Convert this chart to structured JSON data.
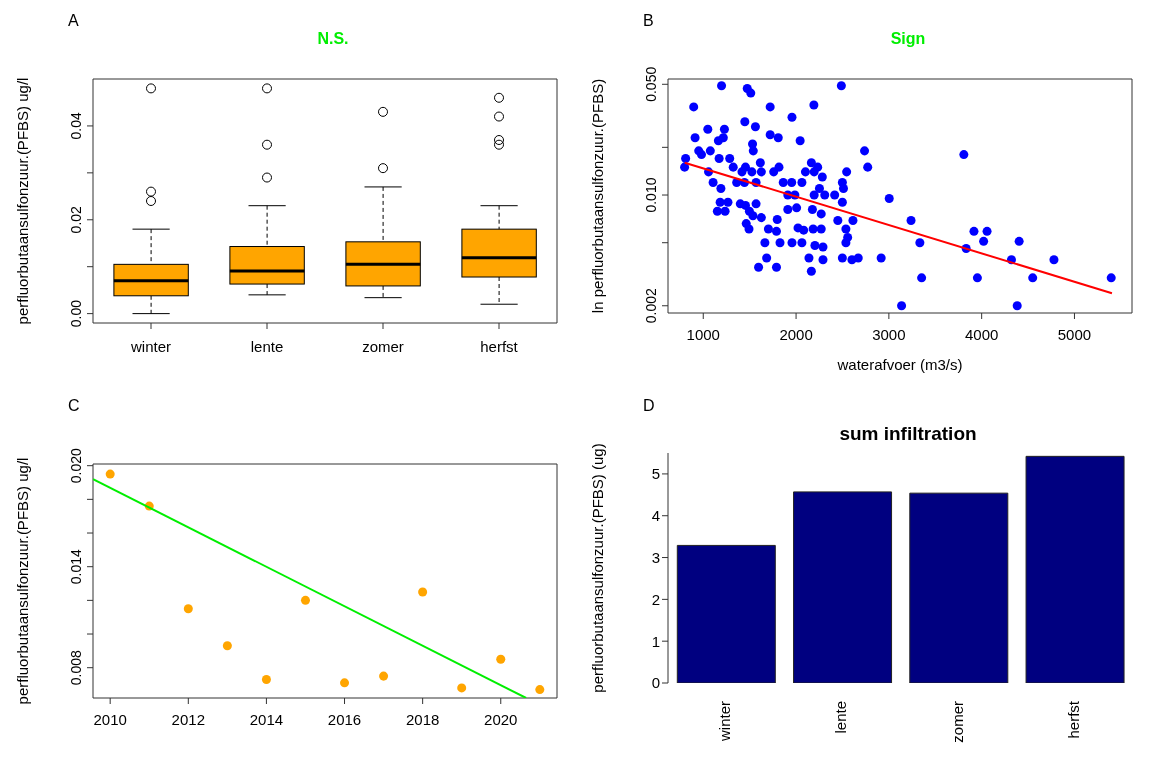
{
  "chart_data": [
    {
      "type": "box",
      "title": "N.S.",
      "ylabel": "perfluorbutaansulfonzuur.(PFBS) ug/l",
      "annotations": [
        "A"
      ],
      "categories": [
        "winter",
        "lente",
        "zomer",
        "herfst"
      ],
      "color": "#ffa500",
      "ylim": [
        -0.002,
        0.05
      ],
      "yticks": [
        {
          "value": 0,
          "label": "0.00"
        },
        {
          "value": 0.01,
          "label": null
        },
        0.02,
        {
          "value": 0.03,
          "label": null
        },
        0.04
      ],
      "boxes": [
        {
          "low": 0,
          "q1": 0.0038,
          "median": 0.007,
          "q3": 0.0105,
          "high": 0.018,
          "outliers": [
            0.048,
            0.026,
            0.024
          ]
        },
        {
          "low": 0.004,
          "q1": 0.0063,
          "median": 0.0091,
          "q3": 0.0143,
          "high": 0.023,
          "outliers": [
            0.048,
            0.036,
            0.029
          ]
        },
        {
          "low": 0.0034,
          "q1": 0.0059,
          "median": 0.0105,
          "q3": 0.0153,
          "high": 0.027,
          "outliers": [
            0.043,
            0.031
          ]
        },
        {
          "low": 0.002,
          "q1": 0.0078,
          "median": 0.0119,
          "q3": 0.018,
          "high": 0.023,
          "outliers": [
            0.046,
            0.042,
            0.037,
            0.036
          ]
        }
      ]
    },
    {
      "type": "scatter",
      "title": "Sign",
      "xlabel": "waterafvoer (m3/s)",
      "ylabel": "ln perfluorbutaansulfonzuur.(PFBS)",
      "annotations": [
        "B"
      ],
      "log": "y",
      "marker": "circle",
      "xlim": [
        620,
        5620
      ],
      "xticks": [
        1000,
        2000,
        3000,
        4000,
        5000
      ],
      "ylim": [
        0.0018,
        0.054
      ],
      "yticks": [
        0.002,
        {
          "value": 0.005,
          "label": null
        },
        {
          "value": 0.01,
          "label": "0.010"
        },
        {
          "value": 0.02,
          "label": null
        },
        {
          "value": 0.05,
          "label": "0.050"
        }
      ],
      "series": [
        {
          "type": "scatter",
          "color": "#0000ff",
          "x": [
            1197,
            1474,
            1512,
            2488,
            897,
            1721,
            2192,
            1956,
            1448,
            1562,
            1049,
            1228,
            912,
            1216,
            1163,
            1721,
            1808,
            2044,
            1531,
            1539,
            2738,
            951,
            981,
            1076,
            1171,
            1285,
            810,
            799,
            2772,
            1323,
            1417,
            1455,
            1524,
            1615,
            1626,
            1759,
            1816,
            1057,
            1106,
            1190,
            1360,
            1444,
            1569,
            2101,
            2165,
            2233,
            2195,
            2283,
            2545,
            2499,
            2511,
            1862,
            1953,
            2063,
            1911,
            1987,
            2195,
            2252,
            2309,
            2416,
            2499,
            3004,
            1182,
            1266,
            1399,
            1455,
            1569,
            1152,
            1235,
            1497,
            1535,
            1626,
            1911,
            2006,
            2176,
            2271,
            1797,
            1463,
            1493,
            1702,
            1789,
            2021,
            2082,
            2184,
            2271,
            2450,
            2537,
            2613,
            3239,
            2556,
            1664,
            1827,
            1956,
            2063,
            2203,
            2290,
            2537,
            3334,
            1683,
            2139,
            2290,
            2499,
            2602,
            2670,
            2917,
            1596,
            1789,
            2165,
            3353,
            3137,
            3808,
            3917,
            4058,
            4021,
            3833,
            3954,
            4404,
            4321,
            4383,
            4550,
            4779,
            5396
          ],
          "values": [
            0.049,
            0.047,
            0.044,
            0.049,
            0.036,
            0.036,
            0.037,
            0.031,
            0.029,
            0.027,
            0.026,
            0.026,
            0.023,
            0.023,
            0.022,
            0.024,
            0.023,
            0.022,
            0.021,
            0.019,
            0.019,
            0.019,
            0.018,
            0.019,
            0.017,
            0.017,
            0.017,
            0.015,
            0.015,
            0.015,
            0.014,
            0.015,
            0.014,
            0.016,
            0.014,
            0.014,
            0.015,
            0.014,
            0.012,
            0.011,
            0.012,
            0.012,
            0.012,
            0.014,
            0.016,
            0.015,
            0.014,
            0.013,
            0.014,
            0.012,
            0.011,
            0.012,
            0.012,
            0.012,
            0.01,
            0.01,
            0.01,
            0.011,
            0.01,
            0.01,
            0.009,
            0.0095,
            0.009,
            0.009,
            0.0088,
            0.0086,
            0.0088,
            0.0079,
            0.0079,
            0.0079,
            0.0074,
            0.0072,
            0.0081,
            0.0083,
            0.0081,
            0.0076,
            0.007,
            0.0066,
            0.0061,
            0.0061,
            0.0059,
            0.0062,
            0.006,
            0.0061,
            0.0061,
            0.0069,
            0.0061,
            0.0069,
            0.0069,
            0.0054,
            0.005,
            0.005,
            0.005,
            0.005,
            0.0048,
            0.0047,
            0.005,
            0.005,
            0.004,
            0.004,
            0.0039,
            0.004,
            0.0039,
            0.004,
            0.004,
            0.0035,
            0.0035,
            0.0033,
            0.003,
            0.002,
            0.018,
            0.0059,
            0.0059,
            0.0051,
            0.0046,
            0.003,
            0.0051,
            0.0039,
            0.002,
            0.003,
            0.0039,
            0.003
          ]
        },
        {
          "type": "line",
          "color": "#ff0000",
          "marker": "none",
          "x": [
            800,
            5404
          ],
          "values": [
            0.016,
            0.0024
          ]
        }
      ]
    },
    {
      "type": "scatter",
      "ylabel": "perfluorbutaansulfonzuur.(PFBS) ug/l",
      "annotations": [
        "C"
      ],
      "marker": "circle",
      "xlim": [
        2009.56,
        2021.44
      ],
      "xticks": [
        2010,
        2012,
        2014,
        2016,
        2018,
        2020
      ],
      "ylim": [
        0.0062,
        0.0201
      ],
      "yticks": [
        0.008,
        {
          "value": 0.01,
          "label": null
        },
        {
          "value": 0.012,
          "label": null
        },
        0.014,
        {
          "value": 0.016,
          "label": null
        },
        {
          "value": 0.018,
          "label": null
        },
        {
          "value": 0.02,
          "label": "0.020"
        }
      ],
      "series": [
        {
          "type": "scatter",
          "color": "#ffa500",
          "x": [
            2010,
            2011,
            2012,
            2013,
            2014,
            2015,
            2016,
            2017,
            2018,
            2019,
            2020,
            2021
          ],
          "values": [
            0.0195,
            0.0176,
            0.0115,
            0.0093,
            0.0073,
            0.012,
            0.0071,
            0.0075,
            0.0125,
            0.0068,
            0.0085,
            0.0067
          ]
        },
        {
          "type": "line",
          "color": "#00ee00",
          "marker": "none",
          "x": [
            2009.56,
            2020.65
          ],
          "values": [
            0.0192,
            0.0062
          ]
        }
      ]
    },
    {
      "type": "bar",
      "title": "sum infiltration",
      "ylabel": "perfluorbutaansulfonzuur.(PFBS) (ug)",
      "annotations": [
        "D"
      ],
      "categories": [
        "winter",
        "lente",
        "zomer",
        "herfst"
      ],
      "values": [
        3.29,
        4.57,
        4.54,
        5.42
      ],
      "color": "#000080",
      "ylim": [
        0,
        5.5
      ],
      "yticks": [
        0,
        1,
        2,
        3,
        4,
        5
      ]
    }
  ]
}
